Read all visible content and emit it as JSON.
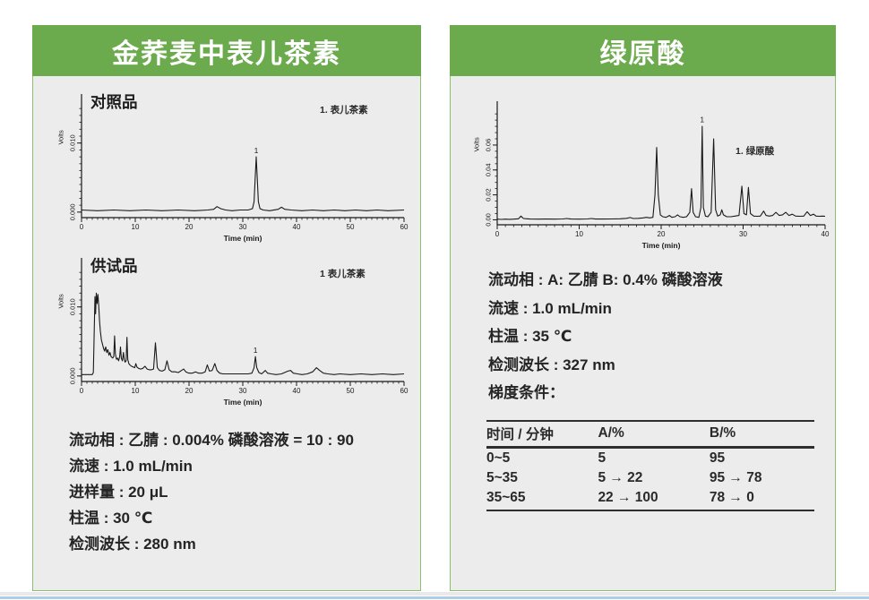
{
  "left_panel": {
    "title": "金荞麦中表儿茶素",
    "conditions": [
      "流动相 : 乙腈 : 0.004% 磷酸溶液 = 10 : 90",
      "流速 : 1.0 mL/min",
      "进样量 : 20 μL",
      "柱温 : 30 ℃",
      "检测波长 : 280 nm"
    ]
  },
  "right_panel": {
    "title": "绿原酸",
    "conditions": [
      "流动相 : A: 乙腈 B: 0.4% 磷酸溶液",
      "流速 : 1.0 mL/min",
      "柱温 : 35 ℃",
      "检测波长 : 327 nm"
    ],
    "gradient_label": "梯度条件：",
    "gradient_table": {
      "headers": [
        "时间 / 分钟",
        "A/%",
        "B/%"
      ],
      "rows": [
        [
          "0~5",
          "5",
          "95"
        ],
        [
          "5~35",
          "5 → 22",
          "95 → 78"
        ],
        [
          "35~65",
          "22 → 100",
          "78 → 0"
        ]
      ]
    }
  },
  "colors": {
    "header_green": "#6caa4e",
    "panel_border_green": "#8cbf72",
    "panel_bg": "#ececec",
    "trace_ink": "#1a1a1a",
    "bottom_rule_blue": "#aecbe7"
  },
  "chart_data": [
    {
      "type": "line",
      "title": "对照品",
      "legend": "1. 表儿茶素",
      "xlabel": "Time (min)",
      "ylabel": "Volts",
      "xlim": [
        0,
        60
      ],
      "ylim": [
        -0.0008,
        0.0158
      ],
      "xticks": [
        0,
        10,
        20,
        30,
        40,
        50,
        60
      ],
      "yticks": [
        0,
        0.01
      ],
      "ytick_labels": [
        "0.000",
        "0.010"
      ],
      "x_minor_step": 1,
      "y_minor_step": 0.001,
      "grid": false,
      "legend_position": "top-right",
      "annotations": [
        {
          "label": "1",
          "x": 32.5,
          "y": 0.008
        }
      ],
      "trace": [
        [
          0,
          0.0003
        ],
        [
          3,
          0.0002
        ],
        [
          6,
          0.0003
        ],
        [
          9,
          0.0002
        ],
        [
          12,
          0.0003
        ],
        [
          15,
          0.0002
        ],
        [
          18,
          0.0003
        ],
        [
          21,
          0.0002
        ],
        [
          23.5,
          0.0003
        ],
        [
          24.6,
          0.0004
        ],
        [
          25.2,
          0.0008
        ],
        [
          25.9,
          0.0005
        ],
        [
          26.8,
          0.0003
        ],
        [
          28,
          0.0002
        ],
        [
          29.5,
          0.0003
        ],
        [
          31,
          0.0003
        ],
        [
          31.8,
          0.0005
        ],
        [
          32.1,
          0.0015
        ],
        [
          32.3,
          0.0048
        ],
        [
          32.5,
          0.008
        ],
        [
          32.7,
          0.0048
        ],
        [
          32.9,
          0.0015
        ],
        [
          33.2,
          0.0005
        ],
        [
          33.8,
          0.0003
        ],
        [
          35,
          0.0002
        ],
        [
          36.6,
          0.0004
        ],
        [
          37.2,
          0.0007
        ],
        [
          37.8,
          0.0004
        ],
        [
          39,
          0.0003
        ],
        [
          41,
          0.0002
        ],
        [
          43,
          0.0003
        ],
        [
          45,
          0.0002
        ],
        [
          47,
          0.0003
        ],
        [
          49,
          0.0002
        ],
        [
          51,
          0.0003
        ],
        [
          53,
          0.0002
        ],
        [
          55,
          0.0003
        ],
        [
          57,
          0.0002
        ],
        [
          60,
          0.0003
        ]
      ]
    },
    {
      "type": "line",
      "title": "供试品",
      "legend": "1 表儿茶素",
      "xlabel": "Time (min)",
      "ylabel": "Volts",
      "xlim": [
        0,
        60
      ],
      "ylim": [
        -0.0008,
        0.0158
      ],
      "xticks": [
        0,
        10,
        20,
        30,
        40,
        50,
        60
      ],
      "yticks": [
        0,
        0.01
      ],
      "ytick_labels": [
        "0.000",
        "0.010"
      ],
      "x_minor_step": 1,
      "y_minor_step": 0.001,
      "grid": false,
      "legend_position": "top-right",
      "annotations": [
        {
          "label": "1",
          "x": 32.35,
          "y": 0.0028
        }
      ],
      "trace": [
        [
          0,
          0.0002
        ],
        [
          1,
          0.0002
        ],
        [
          2,
          0.0002
        ],
        [
          2.2,
          0.0005
        ],
        [
          2.35,
          0.006
        ],
        [
          2.5,
          0.0115
        ],
        [
          2.62,
          0.009
        ],
        [
          2.75,
          0.012
        ],
        [
          2.9,
          0.0105
        ],
        [
          3.05,
          0.0118
        ],
        [
          3.2,
          0.0102
        ],
        [
          3.35,
          0.008
        ],
        [
          3.5,
          0.0065
        ],
        [
          3.7,
          0.0052
        ],
        [
          3.9,
          0.0046
        ],
        [
          4.1,
          0.004
        ],
        [
          4.3,
          0.0036
        ],
        [
          4.5,
          0.0042
        ],
        [
          4.7,
          0.0034
        ],
        [
          4.9,
          0.0038
        ],
        [
          5.1,
          0.003
        ],
        [
          5.3,
          0.0034
        ],
        [
          5.5,
          0.0028
        ],
        [
          5.8,
          0.0026
        ],
        [
          6,
          0.0028
        ],
        [
          6.15,
          0.0058
        ],
        [
          6.3,
          0.0032
        ],
        [
          6.5,
          0.0024
        ],
        [
          6.7,
          0.0026
        ],
        [
          6.9,
          0.0022
        ],
        [
          7.1,
          0.0028
        ],
        [
          7.25,
          0.0042
        ],
        [
          7.4,
          0.0026
        ],
        [
          7.6,
          0.0022
        ],
        [
          7.8,
          0.0034
        ],
        [
          7.95,
          0.0024
        ],
        [
          8.1,
          0.002
        ],
        [
          8.3,
          0.0022
        ],
        [
          8.45,
          0.0056
        ],
        [
          8.6,
          0.0024
        ],
        [
          8.8,
          0.0018
        ],
        [
          9,
          0.0016
        ],
        [
          9.3,
          0.0014
        ],
        [
          9.6,
          0.0013
        ],
        [
          9.9,
          0.0012
        ],
        [
          10.1,
          0.0018
        ],
        [
          10.3,
          0.0013
        ],
        [
          10.6,
          0.0011
        ],
        [
          11,
          0.001
        ],
        [
          11.4,
          0.0011
        ],
        [
          11.8,
          0.0014
        ],
        [
          12.2,
          0.001
        ],
        [
          12.6,
          0.0009
        ],
        [
          13,
          0.0009
        ],
        [
          13.4,
          0.001
        ],
        [
          13.75,
          0.0048
        ],
        [
          14.1,
          0.0012
        ],
        [
          14.5,
          0.0008
        ],
        [
          15,
          0.0007
        ],
        [
          15.5,
          0.0009
        ],
        [
          15.9,
          0.0022
        ],
        [
          16.3,
          0.0009
        ],
        [
          16.8,
          0.0006
        ],
        [
          17.4,
          0.0006
        ],
        [
          18,
          0.0005
        ],
        [
          18.6,
          0.0008
        ],
        [
          19,
          0.001
        ],
        [
          19.4,
          0.0006
        ],
        [
          20,
          0.0004
        ],
        [
          20.6,
          0.0004
        ],
        [
          21.2,
          0.0006
        ],
        [
          21.8,
          0.0004
        ],
        [
          22.4,
          0.0004
        ],
        [
          23,
          0.0006
        ],
        [
          23.4,
          0.0016
        ],
        [
          23.8,
          0.0007
        ],
        [
          24.3,
          0.0008
        ],
        [
          24.8,
          0.0018
        ],
        [
          25.2,
          0.0008
        ],
        [
          25.7,
          0.0004
        ],
        [
          26.3,
          0.0003
        ],
        [
          27,
          0.0003
        ],
        [
          28,
          0.0003
        ],
        [
          29,
          0.0003
        ],
        [
          30,
          0.0003
        ],
        [
          31,
          0.0003
        ],
        [
          31.7,
          0.0004
        ],
        [
          32.1,
          0.0012
        ],
        [
          32.35,
          0.0028
        ],
        [
          32.6,
          0.0012
        ],
        [
          33,
          0.0005
        ],
        [
          33.5,
          0.0003
        ],
        [
          34.2,
          0.0008
        ],
        [
          34.6,
          0.0004
        ],
        [
          35.3,
          0.0003
        ],
        [
          36.2,
          0.0002
        ],
        [
          37.2,
          0.0003
        ],
        [
          38.4,
          0.0007
        ],
        [
          38.9,
          0.0008
        ],
        [
          39.4,
          0.0004
        ],
        [
          40.2,
          0.0003
        ],
        [
          41,
          0.0002
        ],
        [
          42,
          0.0003
        ],
        [
          43,
          0.0006
        ],
        [
          43.7,
          0.0012
        ],
        [
          44.3,
          0.0008
        ],
        [
          45,
          0.0004
        ],
        [
          45.8,
          0.0003
        ],
        [
          47,
          0.0002
        ],
        [
          48,
          0.0003
        ],
        [
          50,
          0.0002
        ],
        [
          52,
          0.0003
        ],
        [
          54,
          0.0002
        ],
        [
          56,
          0.0003
        ],
        [
          58,
          0.0002
        ],
        [
          60,
          0.0003
        ]
      ]
    },
    {
      "type": "line",
      "title": "",
      "legend": "1. 绿原酸",
      "xlabel": "Time (min)",
      "ylabel": "Volts",
      "xlim": [
        0,
        40
      ],
      "ylim": [
        -0.004,
        0.088
      ],
      "xticks": [
        0,
        10,
        20,
        30,
        40
      ],
      "yticks": [
        0,
        0.02,
        0.04,
        0.06
      ],
      "ytick_labels": [
        "0.00",
        "0.02",
        "0.04",
        "0.06"
      ],
      "x_minor_step": 1,
      "y_minor_step": 0.005,
      "grid": false,
      "legend_position": "right",
      "annotations": [
        {
          "label": "1",
          "x": 25,
          "y": 0.0755
        }
      ],
      "trace": [
        [
          0,
          0.0005
        ],
        [
          0.5,
          0.0003
        ],
        [
          1,
          0.0005
        ],
        [
          1.5,
          0.0004
        ],
        [
          2,
          0.0005
        ],
        [
          2.6,
          0.0008
        ],
        [
          2.9,
          0.003
        ],
        [
          3.2,
          0.001
        ],
        [
          3.6,
          0.0008
        ],
        [
          4,
          0.0006
        ],
        [
          5,
          0.0005
        ],
        [
          6,
          0.0006
        ],
        [
          7,
          0.0005
        ],
        [
          8,
          0.0007
        ],
        [
          8.5,
          0.001
        ],
        [
          9,
          0.0006
        ],
        [
          10,
          0.0005
        ],
        [
          11,
          0.0007
        ],
        [
          11.5,
          0.001
        ],
        [
          12,
          0.0006
        ],
        [
          13,
          0.0006
        ],
        [
          14,
          0.0007
        ],
        [
          15,
          0.0008
        ],
        [
          15.8,
          0.0012
        ],
        [
          16.2,
          0.0018
        ],
        [
          16.6,
          0.001
        ],
        [
          17.2,
          0.0012
        ],
        [
          17.8,
          0.0015
        ],
        [
          18.2,
          0.002
        ],
        [
          18.6,
          0.0015
        ],
        [
          19,
          0.002
        ],
        [
          19.25,
          0.02
        ],
        [
          19.45,
          0.058
        ],
        [
          19.65,
          0.02
        ],
        [
          19.9,
          0.004
        ],
        [
          20.2,
          0.0025
        ],
        [
          20.6,
          0.002
        ],
        [
          21,
          0.0035
        ],
        [
          21.3,
          0.002
        ],
        [
          21.7,
          0.0025
        ],
        [
          22,
          0.004
        ],
        [
          22.3,
          0.0025
        ],
        [
          22.7,
          0.002
        ],
        [
          23.1,
          0.0025
        ],
        [
          23.5,
          0.006
        ],
        [
          23.7,
          0.025
        ],
        [
          23.9,
          0.006
        ],
        [
          24.2,
          0.0025
        ],
        [
          24.6,
          0.002
        ],
        [
          24.85,
          0.01
        ],
        [
          25,
          0.075
        ],
        [
          25.15,
          0.01
        ],
        [
          25.4,
          0.003
        ],
        [
          25.7,
          0.0025
        ],
        [
          26.1,
          0.006
        ],
        [
          26.4,
          0.065
        ],
        [
          26.65,
          0.008
        ],
        [
          26.9,
          0.003
        ],
        [
          27.2,
          0.004
        ],
        [
          27.4,
          0.008
        ],
        [
          27.6,
          0.004
        ],
        [
          28,
          0.0025
        ],
        [
          28.5,
          0.0025
        ],
        [
          29,
          0.003
        ],
        [
          29.5,
          0.0035
        ],
        [
          29.85,
          0.027
        ],
        [
          30.1,
          0.005
        ],
        [
          30.4,
          0.004
        ],
        [
          30.65,
          0.026
        ],
        [
          30.9,
          0.005
        ],
        [
          31.3,
          0.003
        ],
        [
          31.7,
          0.0028
        ],
        [
          32.1,
          0.003
        ],
        [
          32.5,
          0.007
        ],
        [
          32.8,
          0.0035
        ],
        [
          33.2,
          0.003
        ],
        [
          33.6,
          0.0035
        ],
        [
          34,
          0.006
        ],
        [
          34.4,
          0.0035
        ],
        [
          34.8,
          0.004
        ],
        [
          35.2,
          0.006
        ],
        [
          35.6,
          0.0035
        ],
        [
          36,
          0.0045
        ],
        [
          36.4,
          0.003
        ],
        [
          36.9,
          0.0028
        ],
        [
          37.4,
          0.003
        ],
        [
          37.8,
          0.0065
        ],
        [
          38.2,
          0.0035
        ],
        [
          38.6,
          0.0045
        ],
        [
          38.9,
          0.003
        ],
        [
          39.3,
          0.0028
        ],
        [
          39.7,
          0.003
        ],
        [
          40,
          0.0028
        ]
      ]
    }
  ]
}
